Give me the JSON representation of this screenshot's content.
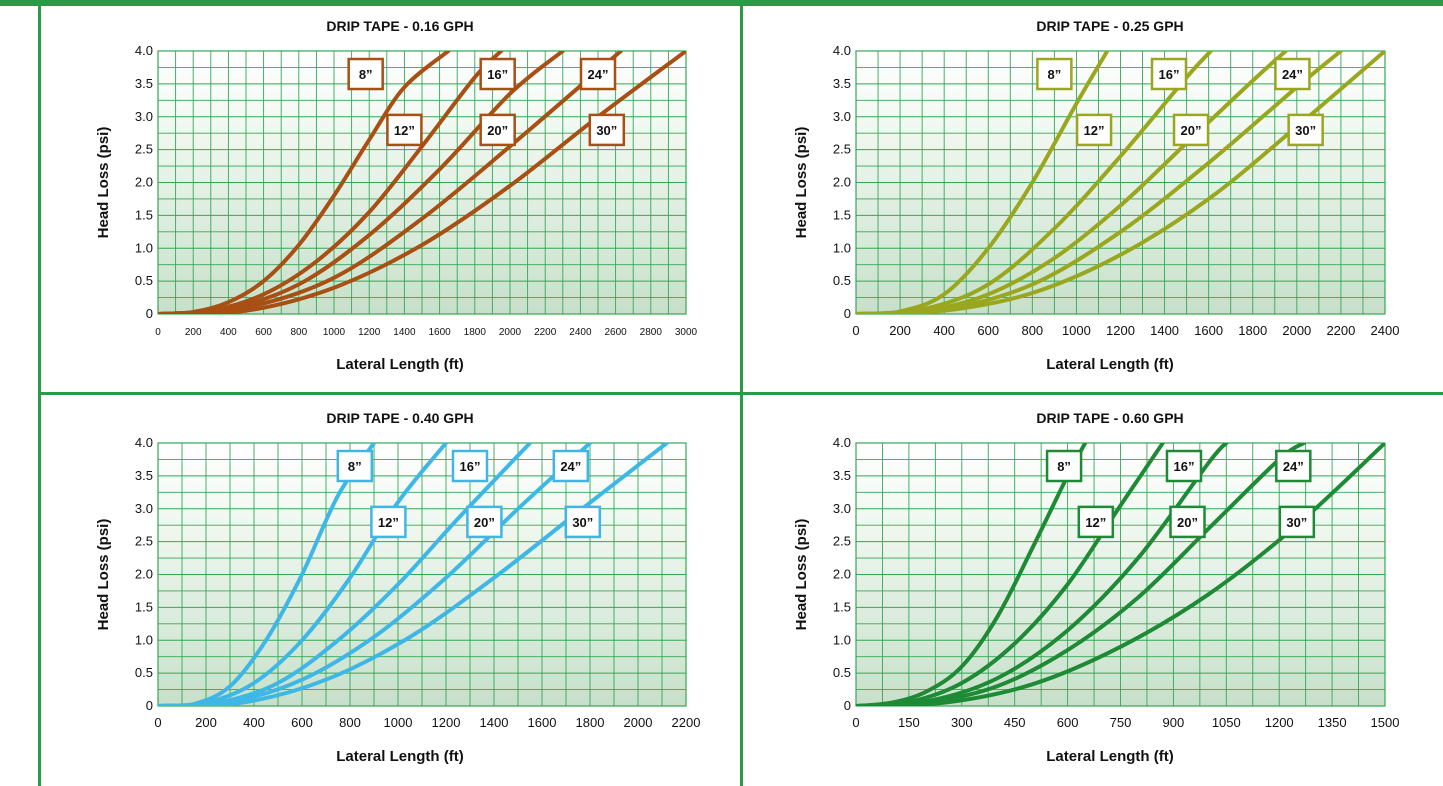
{
  "frame_color": "#2a9a48",
  "grid_color": "#33a853",
  "chart_data": [
    {
      "type": "line",
      "title": "DRIP TAPE - 0.16 GPH",
      "xlabel": "Lateral Length (ft)",
      "ylabel": "Head Loss (psi)",
      "xlim": [
        0,
        3000
      ],
      "ylim": [
        0,
        4.0
      ],
      "x_ticks": [
        "0",
        "200",
        "400",
        "600",
        "800",
        "1000",
        "1200",
        "1400",
        "1600",
        "1800",
        "2000",
        "2200",
        "2400",
        "2600",
        "2800",
        "3000"
      ],
      "y_ticks": [
        "0",
        "0.5",
        "1.0",
        "1.5",
        "2.0",
        "2.5",
        "3.0",
        "3.5",
        "4.0"
      ],
      "grid": true,
      "color": "#a84f14",
      "series": [
        {
          "name": "8”",
          "x": [
            0,
            200,
            400,
            600,
            800,
            1000,
            1200,
            1400,
            1650
          ],
          "y": [
            0,
            0.03,
            0.18,
            0.5,
            1.05,
            1.8,
            2.65,
            3.45,
            4.0
          ]
        },
        {
          "name": "12”",
          "x": [
            0,
            300,
            600,
            900,
            1200,
            1500,
            1800,
            1950
          ],
          "y": [
            0,
            0.05,
            0.3,
            0.8,
            1.55,
            2.55,
            3.6,
            4.0
          ]
        },
        {
          "name": "16”",
          "x": [
            0,
            400,
            800,
            1200,
            1600,
            2000,
            2300
          ],
          "y": [
            0,
            0.08,
            0.45,
            1.2,
            2.2,
            3.35,
            4.0
          ]
        },
        {
          "name": "20”",
          "x": [
            0,
            500,
            1000,
            1500,
            2000,
            2500,
            2630
          ],
          "y": [
            0,
            0.1,
            0.55,
            1.45,
            2.55,
            3.7,
            4.0
          ]
        },
        {
          "name": "24”",
          "x": [
            0,
            500,
            1000,
            1500,
            2000,
            2500,
            3000
          ],
          "y": [
            0,
            0.05,
            0.4,
            1.05,
            1.95,
            3.0,
            4.0
          ]
        }
      ],
      "labels": [
        {
          "text": "8”",
          "x": 1180,
          "y": 3.65
        },
        {
          "text": "12”",
          "x": 1400,
          "y": 2.8
        },
        {
          "text": "16”",
          "x": 1930,
          "y": 3.65
        },
        {
          "text": "20”",
          "x": 1930,
          "y": 2.8
        },
        {
          "text": "24”",
          "x": 2500,
          "y": 3.65
        },
        {
          "text": "30”",
          "x": 2550,
          "y": 2.8
        }
      ]
    },
    {
      "type": "line",
      "title": "DRIP TAPE - 0.25 GPH",
      "xlabel": "Lateral Length (ft)",
      "ylabel": "Head Loss (psi)",
      "xlim": [
        0,
        2400
      ],
      "ylim": [
        0,
        4.0
      ],
      "x_ticks": [
        "0",
        "200",
        "400",
        "600",
        "800",
        "1000",
        "1200",
        "1400",
        "1600",
        "1800",
        "2000",
        "2200",
        "2400"
      ],
      "y_ticks": [
        "0",
        "0.5",
        "1.0",
        "1.5",
        "2.0",
        "2.5",
        "3.0",
        "3.5",
        "4.0"
      ],
      "grid": true,
      "color": "#9aa71e",
      "series": [
        {
          "name": "8”",
          "x": [
            0,
            200,
            400,
            600,
            800,
            1000,
            1140
          ],
          "y": [
            0,
            0.04,
            0.3,
            1.0,
            2.0,
            3.2,
            4.0
          ]
        },
        {
          "name": "12”",
          "x": [
            0,
            300,
            600,
            900,
            1200,
            1500,
            1610
          ],
          "y": [
            0,
            0.07,
            0.45,
            1.3,
            2.4,
            3.6,
            4.0
          ]
        },
        {
          "name": "16”",
          "x": [
            0,
            300,
            600,
            900,
            1200,
            1500,
            1800,
            1950
          ],
          "y": [
            0,
            0.04,
            0.3,
            0.85,
            1.65,
            2.6,
            3.55,
            4.0
          ]
        },
        {
          "name": "20”",
          "x": [
            0,
            400,
            800,
            1200,
            1600,
            2000,
            2200
          ],
          "y": [
            0,
            0.07,
            0.45,
            1.25,
            2.3,
            3.45,
            4.0
          ]
        },
        {
          "name": "24”",
          "x": [
            0,
            400,
            800,
            1200,
            1600,
            2000,
            2400
          ],
          "y": [
            0,
            0.05,
            0.32,
            0.9,
            1.75,
            2.85,
            4.0
          ]
        }
      ],
      "labels": [
        {
          "text": "8”",
          "x": 900,
          "y": 3.65
        },
        {
          "text": "12”",
          "x": 1080,
          "y": 2.8
        },
        {
          "text": "16”",
          "x": 1420,
          "y": 3.65
        },
        {
          "text": "20”",
          "x": 1520,
          "y": 2.8
        },
        {
          "text": "24”",
          "x": 1980,
          "y": 3.65
        },
        {
          "text": "30”",
          "x": 2040,
          "y": 2.8
        }
      ]
    },
    {
      "type": "line",
      "title": "DRIP TAPE - 0.40 GPH",
      "xlabel": "Lateral Length (ft)",
      "ylabel": "Head Loss (psi)",
      "xlim": [
        0,
        2200
      ],
      "ylim": [
        0,
        4.0
      ],
      "x_ticks": [
        "0",
        "200",
        "400",
        "600",
        "800",
        "1000",
        "1200",
        "1400",
        "1600",
        "1800",
        "2000",
        "2200"
      ],
      "y_ticks": [
        "0",
        "0.5",
        "1.0",
        "1.5",
        "2.0",
        "2.5",
        "3.0",
        "3.5",
        "4.0"
      ],
      "grid": true,
      "color": "#3fb7e6",
      "series": [
        {
          "name": "8”",
          "x": [
            0,
            150,
            300,
            450,
            600,
            750,
            900
          ],
          "y": [
            0,
            0.03,
            0.3,
            1.0,
            2.0,
            3.2,
            4.0
          ]
        },
        {
          "name": "12”",
          "x": [
            0,
            200,
            400,
            600,
            800,
            1000,
            1200
          ],
          "y": [
            0,
            0.05,
            0.35,
            1.0,
            1.95,
            3.1,
            4.0
          ]
        },
        {
          "name": "16”",
          "x": [
            0,
            250,
            500,
            750,
            1000,
            1250,
            1550
          ],
          "y": [
            0,
            0.05,
            0.35,
            1.0,
            1.85,
            2.85,
            4.0
          ]
        },
        {
          "name": "20”",
          "x": [
            0,
            300,
            600,
            900,
            1200,
            1500,
            1800
          ],
          "y": [
            0,
            0.06,
            0.4,
            1.05,
            1.95,
            3.0,
            4.0
          ]
        },
        {
          "name": "24”",
          "x": [
            0,
            350,
            700,
            1050,
            1400,
            1750,
            2120
          ],
          "y": [
            0,
            0.05,
            0.4,
            1.05,
            1.95,
            2.95,
            4.0
          ]
        }
      ],
      "labels": [
        {
          "text": "8”",
          "x": 820,
          "y": 3.65
        },
        {
          "text": "12”",
          "x": 960,
          "y": 2.8
        },
        {
          "text": "16”",
          "x": 1300,
          "y": 3.65
        },
        {
          "text": "20”",
          "x": 1360,
          "y": 2.8
        },
        {
          "text": "24”",
          "x": 1720,
          "y": 3.65
        },
        {
          "text": "30”",
          "x": 1770,
          "y": 2.8
        }
      ]
    },
    {
      "type": "line",
      "title": "DRIP TAPE - 0.60 GPH",
      "xlabel": "Lateral Length (ft)",
      "ylabel": "Head Loss (psi)",
      "xlim": [
        0,
        1500
      ],
      "ylim": [
        0,
        4.0
      ],
      "x_ticks": [
        "0",
        "150",
        "300",
        "450",
        "600",
        "750",
        "900",
        "1050",
        "1200",
        "1350",
        "1500"
      ],
      "y_ticks": [
        "0",
        "0.5",
        "1.0",
        "1.5",
        "2.0",
        "2.5",
        "3.0",
        "3.5",
        "4.0"
      ],
      "grid": true,
      "color": "#1f8a35",
      "series": [
        {
          "name": "8”",
          "x": [
            0,
            100,
            200,
            300,
            400,
            500,
            600,
            650
          ],
          "y": [
            0,
            0.05,
            0.22,
            0.6,
            1.35,
            2.4,
            3.5,
            4.0
          ]
        },
        {
          "name": "12”",
          "x": [
            0,
            150,
            300,
            450,
            600,
            750,
            870
          ],
          "y": [
            0,
            0.06,
            0.35,
            0.95,
            1.85,
            3.05,
            4.0
          ]
        },
        {
          "name": "16”",
          "x": [
            0,
            200,
            400,
            600,
            800,
            1000,
            1050
          ],
          "y": [
            0,
            0.07,
            0.42,
            1.15,
            2.25,
            3.7,
            4.0
          ]
        },
        {
          "name": "20”",
          "x": [
            0,
            200,
            400,
            600,
            800,
            1000,
            1200,
            1270
          ],
          "y": [
            0,
            0.05,
            0.3,
            0.85,
            1.65,
            2.7,
            3.75,
            4.0
          ]
        },
        {
          "name": "24”",
          "x": [
            0,
            250,
            500,
            750,
            1000,
            1250,
            1500
          ],
          "y": [
            0,
            0.05,
            0.33,
            0.9,
            1.7,
            2.75,
            4.0
          ]
        }
      ],
      "labels": [
        {
          "text": "8”",
          "x": 590,
          "y": 3.65
        },
        {
          "text": "12”",
          "x": 680,
          "y": 2.8
        },
        {
          "text": "16”",
          "x": 930,
          "y": 3.65
        },
        {
          "text": "20”",
          "x": 940,
          "y": 2.8
        },
        {
          "text": "24”",
          "x": 1240,
          "y": 3.65
        },
        {
          "text": "30”",
          "x": 1250,
          "y": 2.8
        }
      ]
    }
  ]
}
